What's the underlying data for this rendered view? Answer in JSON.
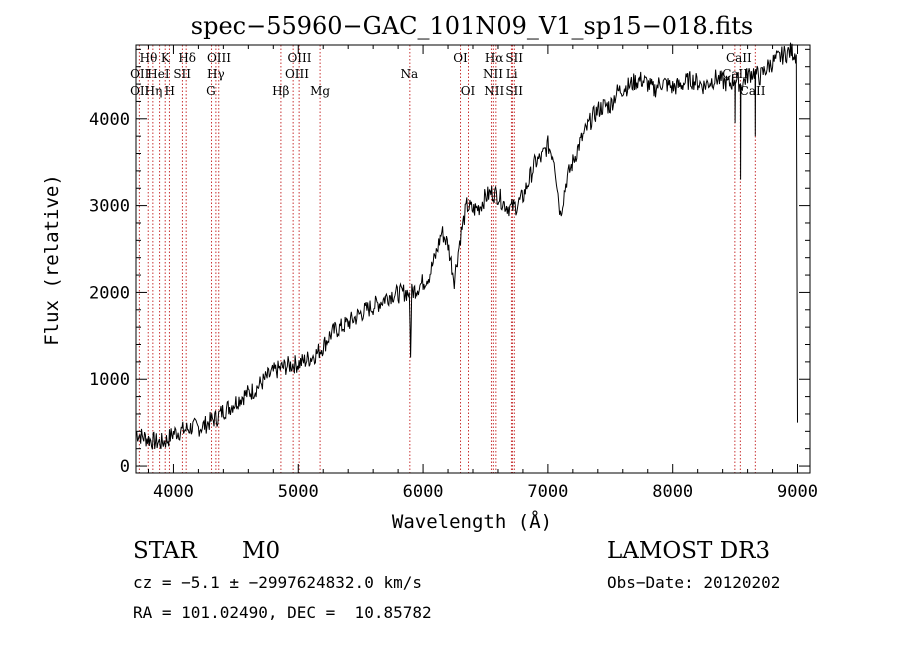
{
  "chart_data": {
    "type": "line",
    "title": "spec−55960−GAC_101N09_V1_sp15−018.fits",
    "xlabel": "Wavelength (Å)",
    "ylabel": "Flux (relative)",
    "xlim": [
      3700,
      9100
    ],
    "ylim": [
      -80,
      4850
    ],
    "xticks": [
      4000,
      5000,
      6000,
      7000,
      8000,
      9000
    ],
    "yticks": [
      0,
      1000,
      2000,
      3000,
      4000
    ],
    "xtick_labels": [
      "4000",
      "5000",
      "6000",
      "7000",
      "8000",
      "9000"
    ],
    "ytick_labels": [
      "0",
      "1000",
      "2000",
      "3000",
      "4000"
    ],
    "grid": false,
    "series": [
      {
        "name": "flux",
        "x": [
          3700,
          3750,
          3800,
          3850,
          3900,
          3950,
          4000,
          4050,
          4100,
          4150,
          4200,
          4250,
          4300,
          4350,
          4400,
          4450,
          4500,
          4550,
          4600,
          4650,
          4700,
          4750,
          4800,
          4850,
          4900,
          4950,
          5000,
          5050,
          5100,
          5150,
          5200,
          5250,
          5300,
          5350,
          5400,
          5450,
          5500,
          5550,
          5600,
          5650,
          5700,
          5750,
          5800,
          5850,
          5890,
          5900,
          5910,
          5950,
          6000,
          6050,
          6100,
          6150,
          6200,
          6250,
          6300,
          6350,
          6400,
          6450,
          6500,
          6550,
          6600,
          6650,
          6700,
          6750,
          6800,
          6850,
          6900,
          6950,
          7000,
          7050,
          7100,
          7150,
          7200,
          7250,
          7300,
          7350,
          7400,
          7450,
          7500,
          7550,
          7600,
          7650,
          7700,
          7750,
          7800,
          7850,
          7900,
          7950,
          8000,
          8050,
          8100,
          8150,
          8200,
          8250,
          8300,
          8350,
          8400,
          8450,
          8498,
          8500,
          8502,
          8542,
          8544,
          8546,
          8600,
          8660,
          8662,
          8664,
          8700,
          8750,
          8800,
          8850,
          8900,
          8950,
          8990,
          9000
        ],
        "y": [
          380,
          340,
          310,
          280,
          270,
          300,
          380,
          400,
          420,
          450,
          440,
          470,
          520,
          560,
          640,
          680,
          740,
          800,
          840,
          880,
          950,
          1020,
          1080,
          1120,
          1150,
          1170,
          1180,
          1210,
          1250,
          1300,
          1380,
          1500,
          1570,
          1600,
          1650,
          1700,
          1760,
          1800,
          1840,
          1880,
          1940,
          1980,
          1980,
          2000,
          2000,
          1250,
          2000,
          2050,
          2120,
          2200,
          2420,
          2700,
          2550,
          2150,
          2650,
          3000,
          2950,
          2980,
          3100,
          3150,
          3120,
          3020,
          2970,
          3000,
          3100,
          3300,
          3500,
          3550,
          3700,
          3550,
          2900,
          3300,
          3500,
          3700,
          3850,
          4000,
          4100,
          4150,
          4150,
          4300,
          4350,
          4380,
          4430,
          4450,
          4400,
          4330,
          4420,
          4400,
          4360,
          4380,
          4420,
          4450,
          4420,
          4380,
          4430,
          4470,
          4430,
          4400,
          4450,
          3950,
          4470,
          4400,
          3300,
          4380,
          4500,
          4550,
          3800,
          4520,
          4480,
          4580,
          4650,
          4700,
          4750,
          4780,
          4740,
          500
        ],
        "color": "#000000"
      }
    ],
    "lines": [
      {
        "name": "Hθ",
        "wavelength": 3798
      },
      {
        "name": "OII",
        "wavelength": 3727
      },
      {
        "name": "HeI",
        "wavelength": 3889
      },
      {
        "name": "Hη",
        "wavelength": 3835
      },
      {
        "name": "K",
        "wavelength": 3934
      },
      {
        "name": "H",
        "wavelength": 3968
      },
      {
        "name": "SII",
        "wavelength": 4072
      },
      {
        "name": "Hδ",
        "wavelength": 4102
      },
      {
        "name": "OIII",
        "wavelength": 4363
      },
      {
        "name": "Hγ",
        "wavelength": 4340
      },
      {
        "name": "G",
        "wavelength": 4305
      },
      {
        "name": "Hβ",
        "wavelength": 4861
      },
      {
        "name": "OIII",
        "wavelength": 4959
      },
      {
        "name": "OIII",
        "wavelength": 5007
      },
      {
        "name": "Mg",
        "wavelength": 5175
      },
      {
        "name": "Na",
        "wavelength": 5894
      },
      {
        "name": "OI",
        "wavelength": 6300
      },
      {
        "name": "OI",
        "wavelength": 6364
      },
      {
        "name": "Hα",
        "wavelength": 6563
      },
      {
        "name": "NII",
        "wavelength": 6548
      },
      {
        "name": "NII",
        "wavelength": 6583
      },
      {
        "name": "SII",
        "wavelength": 6716
      },
      {
        "name": "SII",
        "wavelength": 6731
      },
      {
        "name": "Li",
        "wavelength": 6708
      },
      {
        "name": "CaII",
        "wavelength": 8498
      },
      {
        "name": "CaII",
        "wavelength": 8542
      },
      {
        "name": "CaII",
        "wavelength": 8662
      }
    ],
    "line_labels": {
      "row1": [
        "Hθ",
        "K",
        "Hδ",
        "OIII",
        "OIII",
        "OI",
        "Hα",
        "SII",
        "CaII"
      ],
      "row2": [
        "OII",
        "HeI",
        "SII",
        "Hγ",
        "OIII",
        "Na",
        "NII",
        "Li",
        "CaII"
      ],
      "row3": [
        "OII",
        "Hη",
        "H",
        "G",
        "Hβ",
        "Mg",
        "OI",
        "NII",
        "SII",
        "CaII"
      ]
    }
  },
  "info": {
    "object_class": "STAR",
    "subclass": "M0",
    "survey": "LAMOST DR3",
    "cz": "cz = −5.1 ± −2997624832.0 km/s",
    "obs_date": "Obs−Date: 20120202",
    "coords": "RA = 101.02490, DEC =  10.85782"
  }
}
